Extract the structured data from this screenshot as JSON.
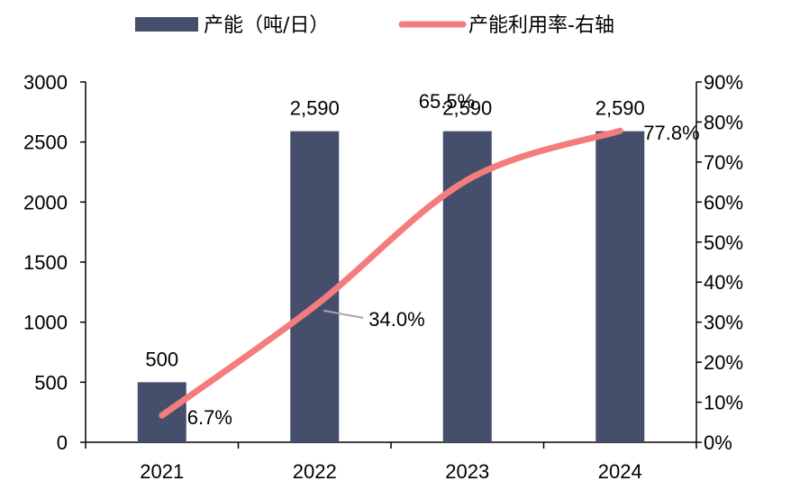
{
  "chart_data": {
    "type": "bar",
    "categories": [
      "2021",
      "2022",
      "2023",
      "2024"
    ],
    "series": [
      {
        "name": "产能（吨/日）",
        "type": "bar",
        "axis": "left",
        "color": "#454f6c",
        "values": [
          500,
          2590,
          2590,
          2590
        ],
        "data_labels": [
          "500",
          "2,590",
          "2,590",
          "2,590"
        ]
      },
      {
        "name": "产能利用率-右轴",
        "type": "line",
        "axis": "right",
        "color": "#f47c7c",
        "values": [
          6.7,
          34.0,
          65.5,
          77.8
        ],
        "data_labels": [
          "6.7%",
          "34.0%",
          "65.5%",
          "77.8%"
        ]
      }
    ],
    "y_left": {
      "min": 0,
      "max": 3000,
      "ticks": [
        "0",
        "500",
        "1000",
        "1500",
        "2000",
        "2500",
        "3000"
      ]
    },
    "y_right": {
      "min": 0,
      "max": 90,
      "ticks": [
        "0%",
        "10%",
        "20%",
        "30%",
        "40%",
        "50%",
        "60%",
        "70%",
        "80%",
        "90%"
      ]
    },
    "legend_position": "top-center",
    "grid": false
  }
}
